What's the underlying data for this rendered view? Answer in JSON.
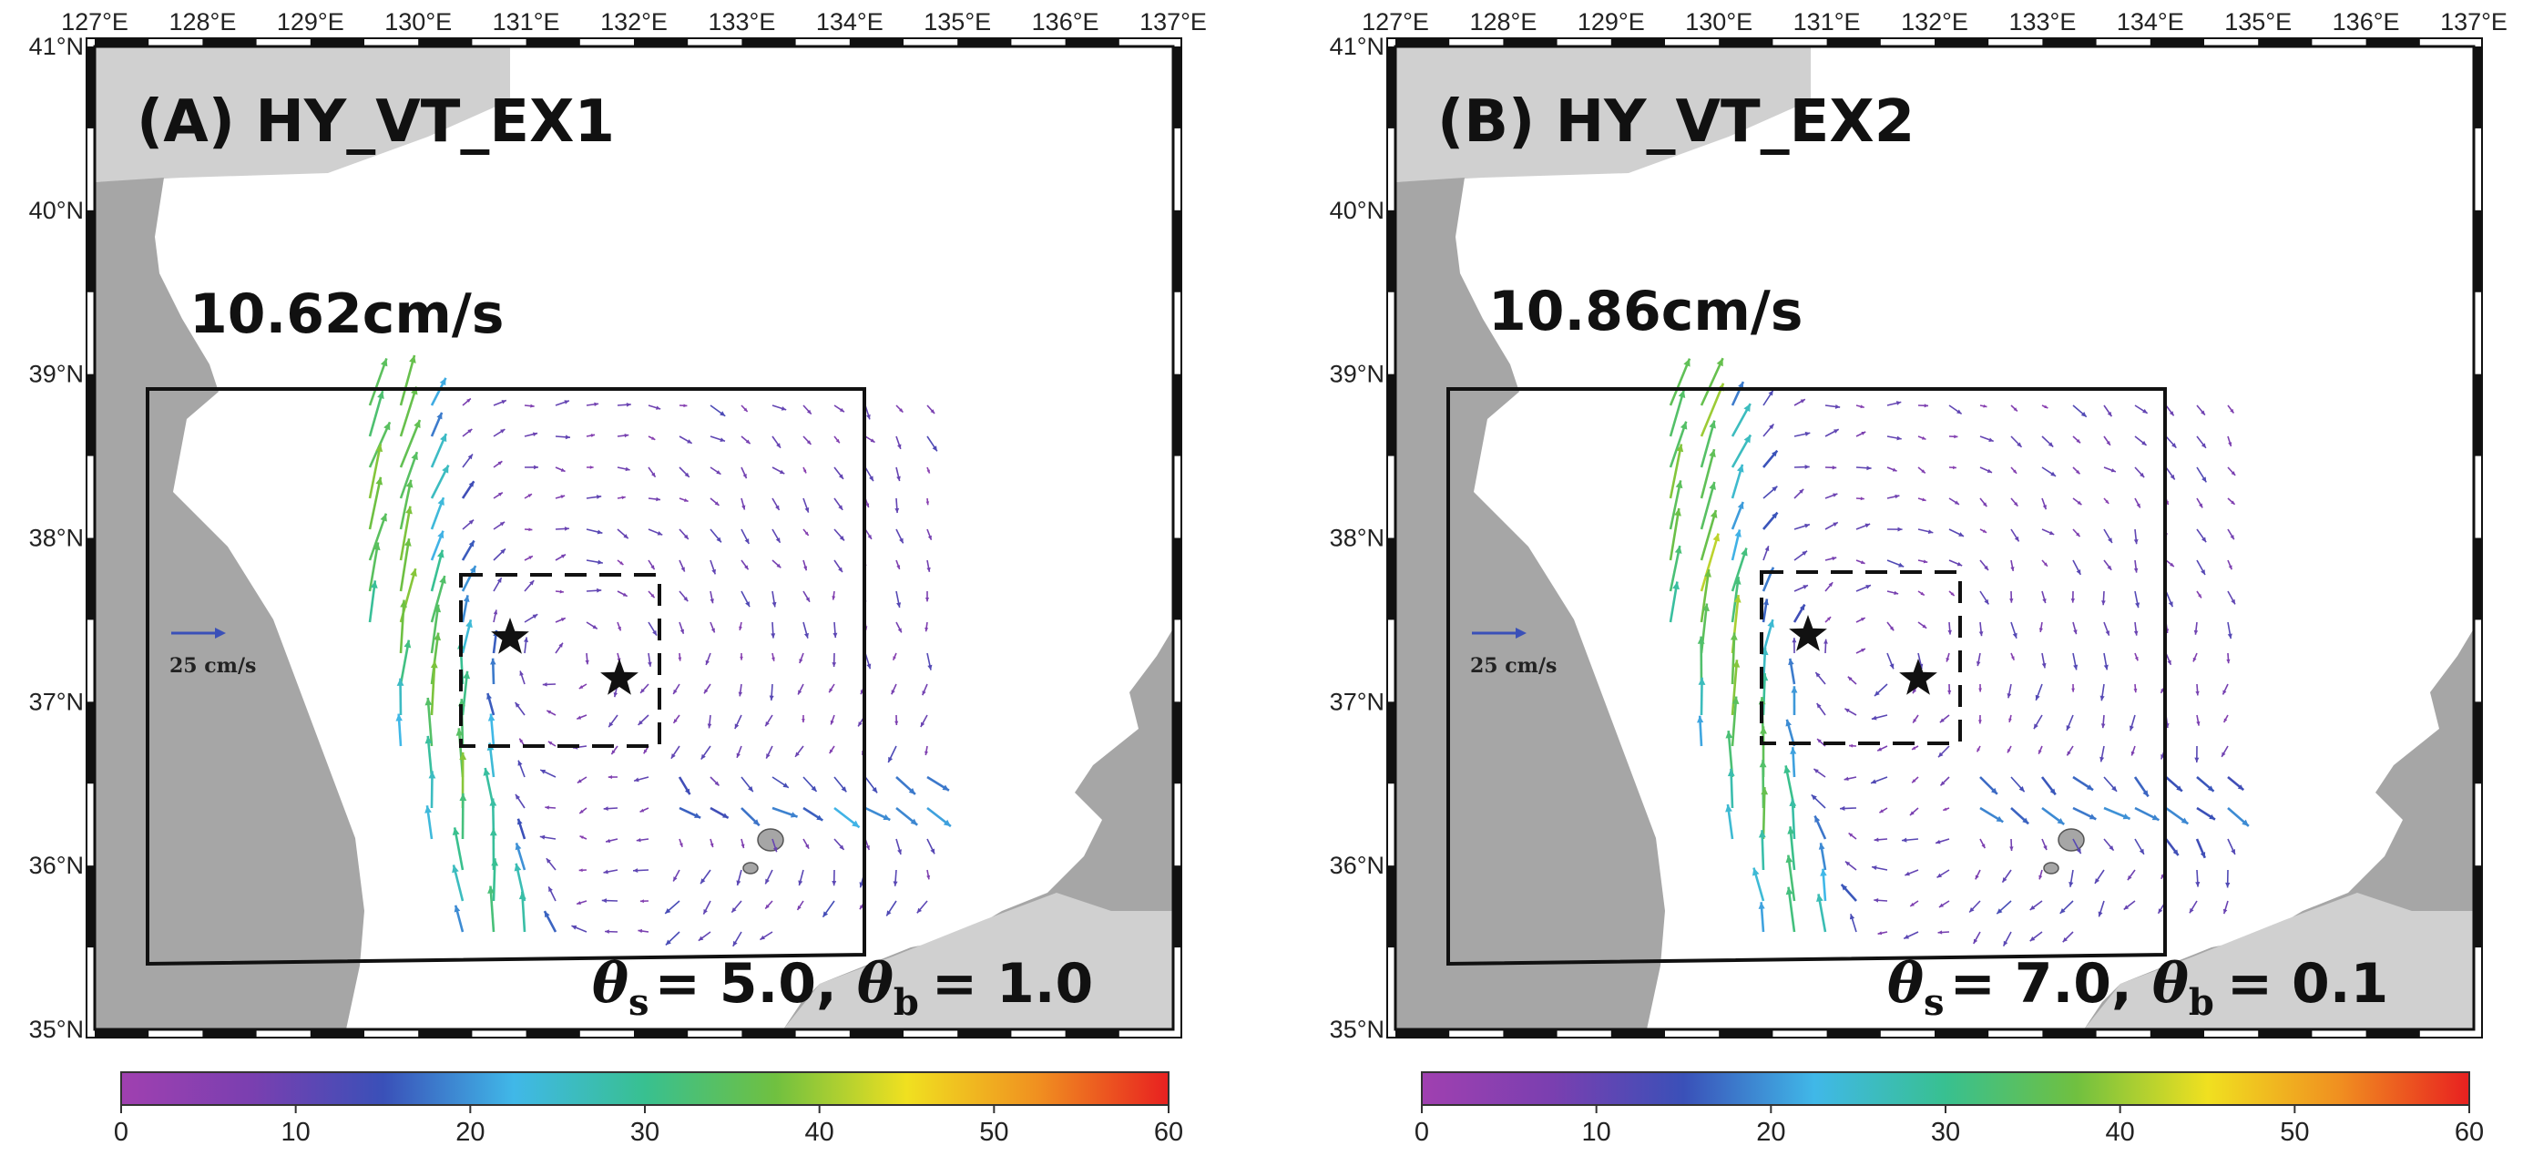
{
  "figure": {
    "panels": [
      {
        "id": "A",
        "title": "(A) HY_VT_EX1",
        "speed_label": "10.62cm/s",
        "theta_s_label": "θ",
        "theta_s_sub": "s",
        "theta_s_value": "= 5.0,",
        "theta_b_label": "θ",
        "theta_b_sub": "b",
        "theta_b_value": "= 1.0",
        "reference_vector_label": "25 cm/s"
      },
      {
        "id": "B",
        "title": "(B) HY_VT_EX2",
        "speed_label": "10.86cm/s",
        "theta_s_label": "θ",
        "theta_s_sub": "s",
        "theta_s_value": "= 7.0,",
        "theta_b_label": "θ",
        "theta_b_sub": "b",
        "theta_b_value": "= 0.1",
        "reference_vector_label": "25 cm/s"
      }
    ],
    "lon_ticks": [
      "127°E",
      "128°E",
      "129°E",
      "130°E",
      "131°E",
      "132°E",
      "133°E",
      "134°E",
      "135°E",
      "136°E",
      "137°E"
    ],
    "lat_ticks": [
      "41°N",
      "40°N",
      "39°N",
      "38°N",
      "37°N",
      "36°N",
      "35°N"
    ],
    "colorbar": {
      "ticks": [
        "0",
        "10",
        "20",
        "30",
        "40",
        "50",
        "60"
      ],
      "range": [
        0,
        60
      ],
      "colors": [
        "#a040b0",
        "#7a3fb0",
        "#3a50b8",
        "#40b8e8",
        "#38c090",
        "#70c040",
        "#f0e020",
        "#f09020",
        "#e82020"
      ]
    },
    "land_color": "#a6a6a6",
    "far_land_color": "#d0d0d0",
    "markers": "star"
  }
}
